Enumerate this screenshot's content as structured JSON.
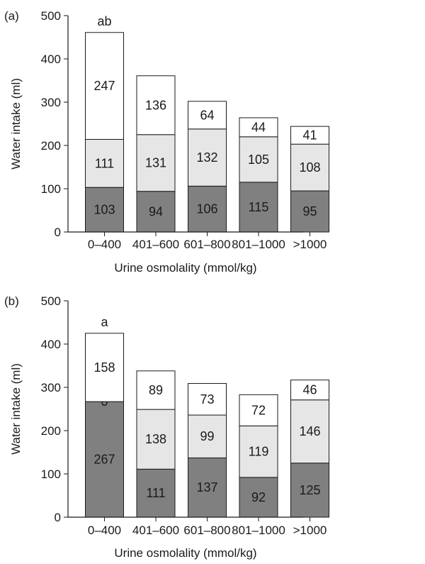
{
  "chart_data": [
    {
      "type": "bar",
      "stacked": true,
      "panel_label": "(a)",
      "xlabel": "Urine osmolality (mmol/kg)",
      "ylabel": "Water intake (ml)",
      "ylim": [
        0,
        500
      ],
      "yticks": [
        "0",
        "100",
        "200",
        "300",
        "400",
        "500"
      ],
      "categories": [
        "0–400",
        "401–600",
        "601–800",
        "801–1000",
        ">1000"
      ],
      "series": [
        {
          "values": [
            103,
            94,
            106,
            115,
            95
          ],
          "color": "#808080"
        },
        {
          "values": [
            111,
            131,
            132,
            105,
            108
          ],
          "color": "#e6e6e6"
        },
        {
          "values": [
            247,
            136,
            64,
            44,
            41
          ],
          "color": "#ffffff"
        }
      ],
      "annotations": [
        {
          "category": "0–400",
          "text": "ab"
        }
      ],
      "grid": false
    },
    {
      "type": "bar",
      "stacked": true,
      "panel_label": "(b)",
      "xlabel": "Urine osmolality (mmol/kg)",
      "ylabel": "Water intake (ml)",
      "ylim": [
        0,
        500
      ],
      "yticks": [
        "0",
        "100",
        "200",
        "300",
        "400",
        "500"
      ],
      "categories": [
        "0–400",
        "401–600",
        "601–800",
        "801–1000",
        ">1000"
      ],
      "series": [
        {
          "values": [
            267,
            111,
            137,
            92,
            125
          ],
          "color": "#808080"
        },
        {
          "values": [
            0,
            138,
            99,
            119,
            146
          ],
          "color": "#e6e6e6"
        },
        {
          "values": [
            158,
            89,
            73,
            72,
            46
          ],
          "color": "#ffffff"
        }
      ],
      "annotations": [
        {
          "category": "0–400",
          "text": "a"
        }
      ],
      "grid": false
    }
  ]
}
